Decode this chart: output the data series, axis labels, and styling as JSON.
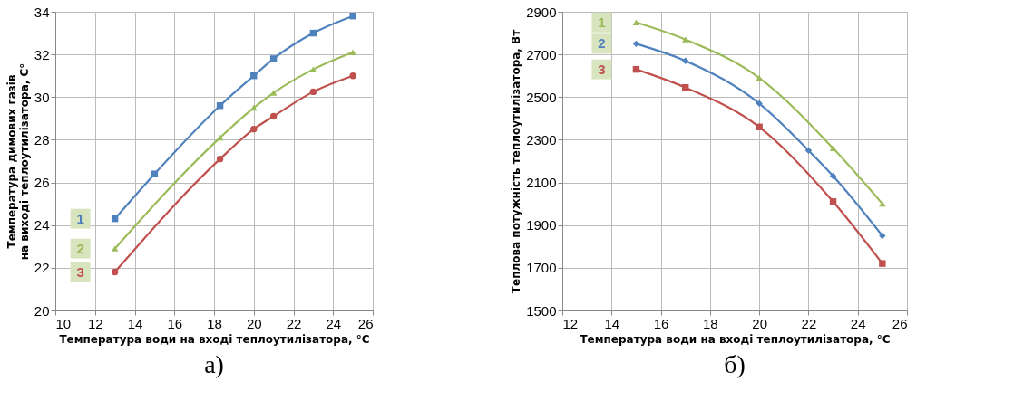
{
  "chart_data": [
    {
      "type": "line",
      "xlabel": "Температура води на вході теплоутилізатора, °C",
      "ylabel": "Температура димових газів\nна виході теплоутилізатора, C°",
      "annotations": [
        "а)"
      ],
      "xlim": [
        10,
        26
      ],
      "xticks": [
        10,
        12,
        14,
        16,
        18,
        20,
        22,
        24,
        26
      ],
      "ylim": [
        20,
        34
      ],
      "yticks": [
        20,
        22,
        24,
        26,
        28,
        30,
        32,
        34
      ],
      "grid": true,
      "series": [
        {
          "name": "1",
          "color": "#4f81bd",
          "marker": "square",
          "x": [
            13,
            15,
            18.3,
            20,
            21,
            23,
            25
          ],
          "values": [
            24.3,
            26.4,
            29.6,
            31.0,
            31.8,
            33.0,
            33.8
          ]
        },
        {
          "name": "2",
          "color": "#9bbb59",
          "marker": "triangle",
          "x": [
            13,
            18.3,
            20,
            21,
            23,
            25
          ],
          "values": [
            22.9,
            28.1,
            29.5,
            30.2,
            31.3,
            32.1
          ]
        },
        {
          "name": "3",
          "color": "#c0504d",
          "marker": "circle",
          "x": [
            13,
            18.3,
            20,
            21,
            23,
            25
          ],
          "values": [
            21.8,
            27.1,
            28.5,
            29.1,
            30.25,
            31.0
          ]
        }
      ]
    },
    {
      "type": "line",
      "xlabel": "Температура води на вході теплоутилізатора, °C",
      "ylabel": "Теплова потужність теплоутилізатора, Вт",
      "annotations": [
        "б)"
      ],
      "xlim": [
        12,
        26
      ],
      "xticks": [
        12,
        14,
        16,
        18,
        20,
        22,
        24,
        26
      ],
      "ylim": [
        1500,
        2900
      ],
      "yticks": [
        1500,
        1700,
        1900,
        2100,
        2300,
        2500,
        2700,
        2900
      ],
      "grid": true,
      "series": [
        {
          "name": "1",
          "color": "#9bbb59",
          "marker": "triangle",
          "x": [
            15,
            17,
            20,
            23,
            25
          ],
          "values": [
            2850,
            2770,
            2590,
            2260,
            2000
          ]
        },
        {
          "name": "2",
          "color": "#4f81bd",
          "marker": "diamond",
          "x": [
            15,
            17,
            20,
            22,
            23,
            25
          ],
          "values": [
            2750,
            2670,
            2470,
            2250,
            2130,
            1850
          ]
        },
        {
          "name": "3",
          "color": "#c0504d",
          "marker": "square",
          "x": [
            15,
            17,
            20,
            23,
            25
          ],
          "values": [
            2630,
            2545,
            2360,
            2010,
            1720
          ]
        }
      ]
    }
  ]
}
